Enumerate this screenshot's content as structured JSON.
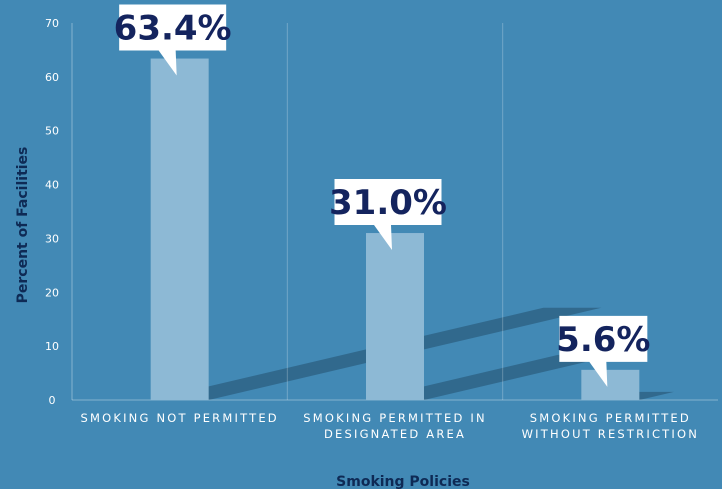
{
  "chart_data": {
    "type": "bar",
    "categories": [
      [
        "SMOKING NOT PERMITTED"
      ],
      [
        "SMOKING PERMITTED IN",
        "DESIGNATED AREA"
      ],
      [
        "SMOKING PERMITTED",
        "WITHOUT RESTRICTION"
      ]
    ],
    "values": [
      63.4,
      31.0,
      5.6
    ],
    "data_labels": [
      "63.4%",
      "31.0%",
      "5.6%"
    ],
    "xlabel": "Smoking Policies",
    "ylabel": "Percent of Facilities",
    "ylim": [
      0,
      70
    ],
    "yticks": [
      0,
      10,
      20,
      30,
      40,
      50,
      60,
      70
    ],
    "grid": "vertical separators between categories",
    "colors": {
      "background": "#4289b5",
      "bar": "#8db9d5",
      "callout_bg": "#ffffff",
      "callout_text": "#14245e",
      "axis_title": "#0e2a55",
      "tick_text": "#ffffff",
      "shadow": "#2c5f80"
    }
  }
}
